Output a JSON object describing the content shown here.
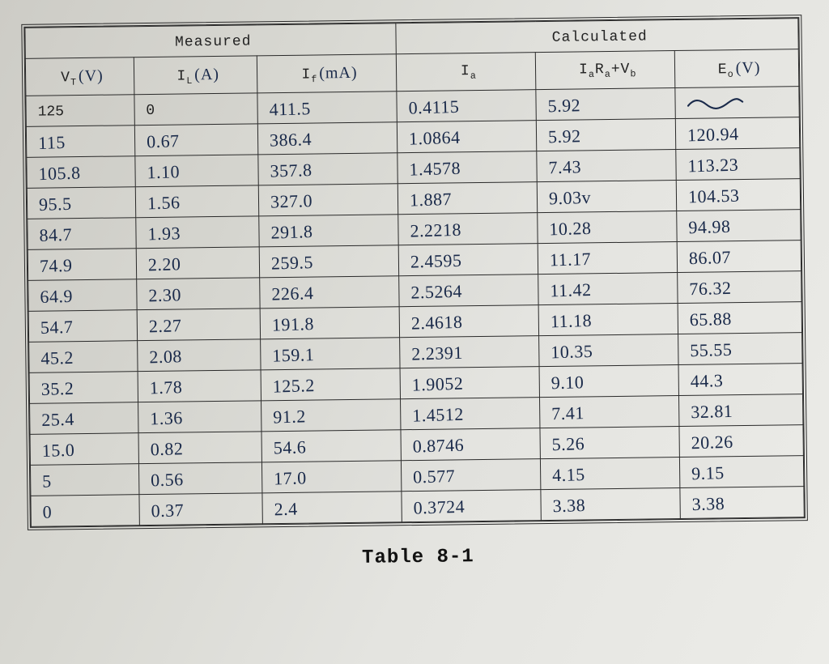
{
  "caption": "Table 8-1",
  "header": {
    "measured": "Measured",
    "calculated": "Calculated"
  },
  "columns": {
    "vt": {
      "printed": "V",
      "sub": "T",
      "unit": "(V)"
    },
    "il": {
      "printed": "I",
      "sub": "L",
      "unit": "(A)"
    },
    "if": {
      "printed": "I",
      "sub": "f",
      "unit": "(mA)"
    },
    "ia": {
      "printed": "I",
      "sub": "a"
    },
    "iarav": {
      "printed": "I",
      "sub": "a",
      "rest": "R",
      "sub2": "a",
      "plus": "+V",
      "sub3": "b"
    },
    "eo": {
      "printed": "E",
      "sub": "o",
      "unit": "(V)"
    }
  },
  "rows": [
    {
      "vt": "125",
      "vt_printed": true,
      "il": "0",
      "il_printed": true,
      "if": "411.5",
      "ia": "0.4115",
      "rv": "5.92",
      "eo": "~"
    },
    {
      "vt": "115",
      "il": "0.67",
      "if": "386.4",
      "ia": "1.0864",
      "rv": "5.92",
      "eo": "120.94"
    },
    {
      "vt": "105.8",
      "il": "1.10",
      "if": "357.8",
      "ia": "1.4578",
      "rv": "7.43",
      "eo": "113.23"
    },
    {
      "vt": "95.5",
      "il": "1.56",
      "if": "327.0",
      "ia": "1.887",
      "rv": "9.03v",
      "eo": "104.53"
    },
    {
      "vt": "84.7",
      "il": "1.93",
      "if": "291.8",
      "ia": "2.2218",
      "rv": "10.28",
      "eo": "94.98"
    },
    {
      "vt": "74.9",
      "il": "2.20",
      "if": "259.5",
      "ia": "2.4595",
      "rv": "11.17",
      "eo": "86.07"
    },
    {
      "vt": "64.9",
      "il": "2.30",
      "if": "226.4",
      "ia": "2.5264",
      "rv": "11.42",
      "eo": "76.32"
    },
    {
      "vt": "54.7",
      "il": "2.27",
      "if": "191.8",
      "ia": "2.4618",
      "rv": "11.18",
      "eo": "65.88"
    },
    {
      "vt": "45.2",
      "il": "2.08",
      "if": "159.1",
      "ia": "2.2391",
      "rv": "10.35",
      "eo": "55.55"
    },
    {
      "vt": "35.2",
      "il": "1.78",
      "if": "125.2",
      "ia": "1.9052",
      "rv": "9.10",
      "eo": "44.3"
    },
    {
      "vt": "25.4",
      "il": "1.36",
      "if": "91.2",
      "ia": "1.4512",
      "rv": "7.41",
      "eo": "32.81"
    },
    {
      "vt": "15.0",
      "il": "0.82",
      "if": "54.6",
      "ia": "0.8746",
      "rv": "5.26",
      "eo": "20.26"
    },
    {
      "vt": "5",
      "il": "0.56",
      "if": "17.0",
      "ia": "0.577",
      "rv": "4.15",
      "eo": "9.15"
    },
    {
      "vt": "0",
      "il": "0.37",
      "if": "2.4",
      "ia": "0.3724",
      "rv": "3.38",
      "eo": "3.38"
    }
  ],
  "style": {
    "printed_color": "#222222",
    "hand_color": "#1a2a4a",
    "border_color": "#2a2a2a",
    "col_widths_pct": [
      14,
      16,
      18,
      18,
      18,
      16
    ]
  }
}
